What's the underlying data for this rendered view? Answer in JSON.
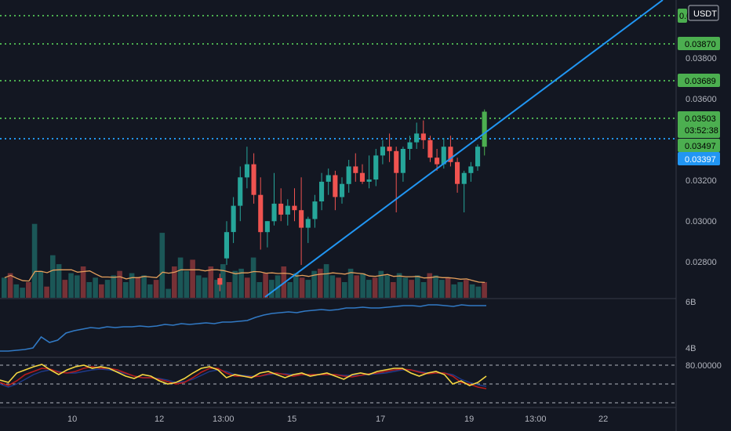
{
  "chart_data": {
    "type": "candlestick",
    "currency": "USDT",
    "y_ticks": [
      "0.03800",
      "0.03600",
      "0.03200",
      "0.03000",
      "0.02800"
    ],
    "y_range": [
      0.0265,
      0.0401
    ],
    "x_ticks": [
      "10",
      "12",
      "13:00",
      "15",
      "17",
      "19",
      "13:00",
      "22"
    ],
    "candles": [
      {
        "o": 0.0274,
        "h": 0.0276,
        "l": 0.0268,
        "c": 0.0271
      },
      {
        "o": 0.0283,
        "h": 0.03,
        "l": 0.028,
        "c": 0.0295
      },
      {
        "o": 0.0295,
        "h": 0.0311,
        "l": 0.029,
        "c": 0.0307
      },
      {
        "o": 0.0307,
        "h": 0.0325,
        "l": 0.03,
        "c": 0.032
      },
      {
        "o": 0.032,
        "h": 0.0334,
        "l": 0.0315,
        "c": 0.0326
      },
      {
        "o": 0.0326,
        "h": 0.0331,
        "l": 0.0308,
        "c": 0.0312
      },
      {
        "o": 0.0312,
        "h": 0.032,
        "l": 0.0287,
        "c": 0.0295
      },
      {
        "o": 0.0295,
        "h": 0.03,
        "l": 0.0288,
        "c": 0.03
      },
      {
        "o": 0.03,
        "h": 0.0322,
        "l": 0.0298,
        "c": 0.0308
      },
      {
        "o": 0.0308,
        "h": 0.0315,
        "l": 0.03,
        "c": 0.0303
      },
      {
        "o": 0.0303,
        "h": 0.031,
        "l": 0.0298,
        "c": 0.0307
      },
      {
        "o": 0.0307,
        "h": 0.0315,
        "l": 0.03,
        "c": 0.0305
      },
      {
        "o": 0.0305,
        "h": 0.032,
        "l": 0.028,
        "c": 0.0297
      },
      {
        "o": 0.0297,
        "h": 0.0302,
        "l": 0.029,
        "c": 0.0301
      },
      {
        "o": 0.0301,
        "h": 0.0312,
        "l": 0.0297,
        "c": 0.0309
      },
      {
        "o": 0.0309,
        "h": 0.0322,
        "l": 0.0305,
        "c": 0.0318
      },
      {
        "o": 0.0318,
        "h": 0.0324,
        "l": 0.0312,
        "c": 0.0321
      },
      {
        "o": 0.0321,
        "h": 0.0323,
        "l": 0.0305,
        "c": 0.0311
      },
      {
        "o": 0.0311,
        "h": 0.032,
        "l": 0.0308,
        "c": 0.0317
      },
      {
        "o": 0.0317,
        "h": 0.0328,
        "l": 0.0313,
        "c": 0.0325
      },
      {
        "o": 0.0325,
        "h": 0.0331,
        "l": 0.0318,
        "c": 0.0322
      },
      {
        "o": 0.0322,
        "h": 0.0326,
        "l": 0.0317,
        "c": 0.0318
      },
      {
        "o": 0.0318,
        "h": 0.033,
        "l": 0.0315,
        "c": 0.0319
      },
      {
        "o": 0.0319,
        "h": 0.0333,
        "l": 0.0316,
        "c": 0.033
      },
      {
        "o": 0.033,
        "h": 0.0337,
        "l": 0.0326,
        "c": 0.0334
      },
      {
        "o": 0.0334,
        "h": 0.034,
        "l": 0.0327,
        "c": 0.0332
      },
      {
        "o": 0.0332,
        "h": 0.0334,
        "l": 0.0304,
        "c": 0.0322
      },
      {
        "o": 0.0322,
        "h": 0.0334,
        "l": 0.0318,
        "c": 0.0333
      },
      {
        "o": 0.0333,
        "h": 0.0339,
        "l": 0.0328,
        "c": 0.0336
      },
      {
        "o": 0.0336,
        "h": 0.0345,
        "l": 0.0333,
        "c": 0.034
      },
      {
        "o": 0.034,
        "h": 0.0346,
        "l": 0.0333,
        "c": 0.0337
      },
      {
        "o": 0.0337,
        "h": 0.0339,
        "l": 0.0327,
        "c": 0.0329
      },
      {
        "o": 0.0329,
        "h": 0.0333,
        "l": 0.0323,
        "c": 0.0326
      },
      {
        "o": 0.0326,
        "h": 0.0338,
        "l": 0.0324,
        "c": 0.0334
      },
      {
        "o": 0.0334,
        "h": 0.0339,
        "l": 0.0325,
        "c": 0.0327
      },
      {
        "o": 0.0327,
        "h": 0.0329,
        "l": 0.0313,
        "c": 0.0317
      },
      {
        "o": 0.0317,
        "h": 0.0323,
        "l": 0.0304,
        "c": 0.0322
      },
      {
        "o": 0.0322,
        "h": 0.0327,
        "l": 0.0318,
        "c": 0.0325
      },
      {
        "o": 0.0325,
        "h": 0.0335,
        "l": 0.0323,
        "c": 0.0334
      },
      {
        "o": 0.0334,
        "h": 0.0351,
        "l": 0.033,
        "c": 0.035
      }
    ],
    "price_levels": [
      {
        "label": "0.0",
        "bg": "#26a69a",
        "fg": "#000000",
        "line": "#4caf50",
        "style": "dotted"
      },
      {
        "label": "0.03870",
        "bg": "#26a69a",
        "fg": "#000000",
        "line": "#4caf50",
        "style": "dotted"
      },
      {
        "label": "0.03689",
        "bg": "#26a69a",
        "fg": "#000000",
        "line": "#4caf50",
        "style": "dotted"
      },
      {
        "label": "0.03503",
        "bg": "#4caf50",
        "fg": "#000000",
        "line": "#4caf50",
        "style": "dotted",
        "sub": "03:52:38"
      },
      {
        "label": "0.03497",
        "bg": "#26a69a",
        "fg": "#000000",
        "line": "#2196f3",
        "style": "dotted"
      },
      {
        "label": "0.03397",
        "bg": "#2196f3",
        "fg": "#ffffff",
        "line": null,
        "style": "none"
      }
    ],
    "volume": [
      18,
      22,
      12,
      9,
      14,
      66,
      24,
      10,
      38,
      30,
      16,
      22,
      20,
      28,
      14,
      18,
      12,
      16,
      20,
      24,
      14,
      22,
      18,
      20,
      12,
      16,
      58,
      8,
      28,
      36,
      24,
      34,
      20,
      18,
      28,
      16,
      30,
      14,
      24,
      26,
      18,
      36,
      14,
      22,
      16,
      20,
      28,
      14,
      22,
      18,
      16,
      24,
      26,
      30,
      20,
      18,
      14,
      26,
      20,
      22,
      16,
      18,
      24,
      20,
      14,
      22,
      18,
      16,
      20,
      14,
      22,
      20,
      16,
      18,
      12,
      14,
      16,
      12,
      10,
      14
    ],
    "volume_axis_labels": [
      "6B",
      "4B"
    ],
    "oscillator_level": "80.00000",
    "colors": {
      "up": "#26a69a",
      "down": "#ef5350",
      "up_bright": "#4caf50",
      "trend": "#2196f3",
      "volume_ma": "#e59f5c",
      "line2": "#3179c4",
      "stoch_k": "#f5d742",
      "stoch_d": "#b71c1c",
      "stoch_line3": "#1e3a8a"
    }
  }
}
